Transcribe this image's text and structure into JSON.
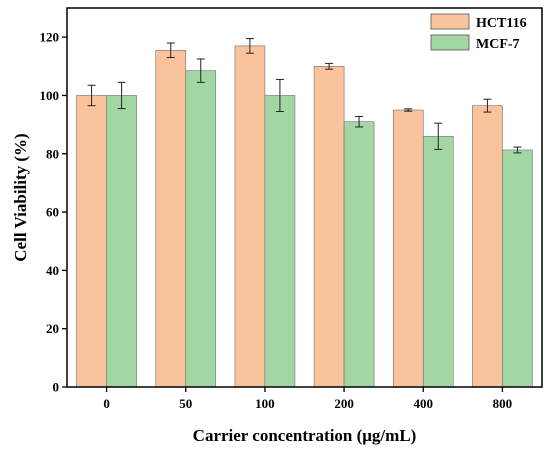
{
  "chart_data": {
    "type": "bar",
    "categories": [
      "0",
      "50",
      "100",
      "200",
      "400",
      "800"
    ],
    "series": [
      {
        "name": "HCT116",
        "color": "#f9c49c",
        "values": [
          100.0,
          115.5,
          117.0,
          110.0,
          95.0,
          96.5
        ],
        "errors": [
          3.5,
          2.5,
          2.5,
          1.0,
          0.4,
          2.2
        ]
      },
      {
        "name": "MCF-7",
        "color": "#a2d7a3",
        "values": [
          100.0,
          108.5,
          100.0,
          91.0,
          86.0,
          81.3
        ],
        "errors": [
          4.5,
          4.0,
          5.5,
          1.8,
          4.5,
          1.0
        ]
      }
    ],
    "xlabel": "Carrier concentration (μg/mL)",
    "ylabel": "Cell Viability (%)",
    "ylim": [
      0,
      130
    ],
    "yticks": [
      0,
      20,
      40,
      60,
      80,
      100,
      120
    ],
    "grid": false,
    "legend_position": "top-right"
  }
}
